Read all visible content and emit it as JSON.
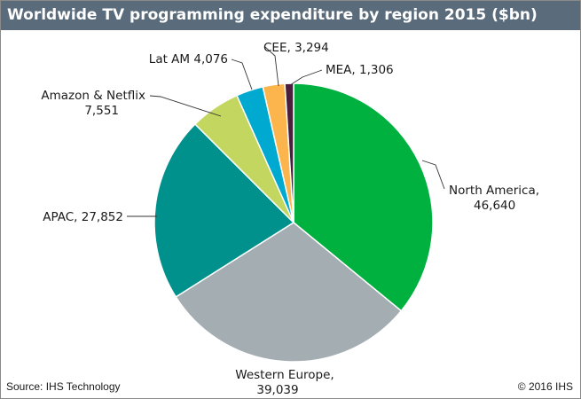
{
  "header": {
    "title": "Worldwide TV programming expenditure by region 2015 ($bn)"
  },
  "footer": {
    "source": "Source: IHS Technology",
    "copyright": "© 2016 IHS"
  },
  "chart_data": {
    "type": "pie",
    "title": "Worldwide TV programming expenditure by region 2015 ($bn)",
    "start_angle_deg": 0,
    "direction": "clockwise",
    "slices": [
      {
        "name": "North America",
        "value": 46640,
        "label_lines": [
          "North America,",
          "46,640"
        ],
        "color": "#00b140"
      },
      {
        "name": "Western Europe",
        "value": 39039,
        "label_lines": [
          "Western Europe,",
          "39,039"
        ],
        "color": "#a3adb2"
      },
      {
        "name": "APAC",
        "value": 27852,
        "label_lines": [
          "APAC, 27,852"
        ],
        "color": "#00918c"
      },
      {
        "name": "Amazon & Netflix",
        "value": 7551,
        "label_lines": [
          "Amazon & Netflix",
          "7,551"
        ],
        "color": "#c3d660"
      },
      {
        "name": "Lat AM",
        "value": 4076,
        "label_lines": [
          "Lat AM 4,076"
        ],
        "color": "#00a9cf"
      },
      {
        "name": "CEE",
        "value": 3294,
        "label_lines": [
          "CEE, 3,294"
        ],
        "color": "#fbb54c"
      },
      {
        "name": "MEA",
        "value": 1306,
        "label_lines": [
          "MEA, 1,306"
        ],
        "color": "#4a1e3c"
      }
    ]
  }
}
